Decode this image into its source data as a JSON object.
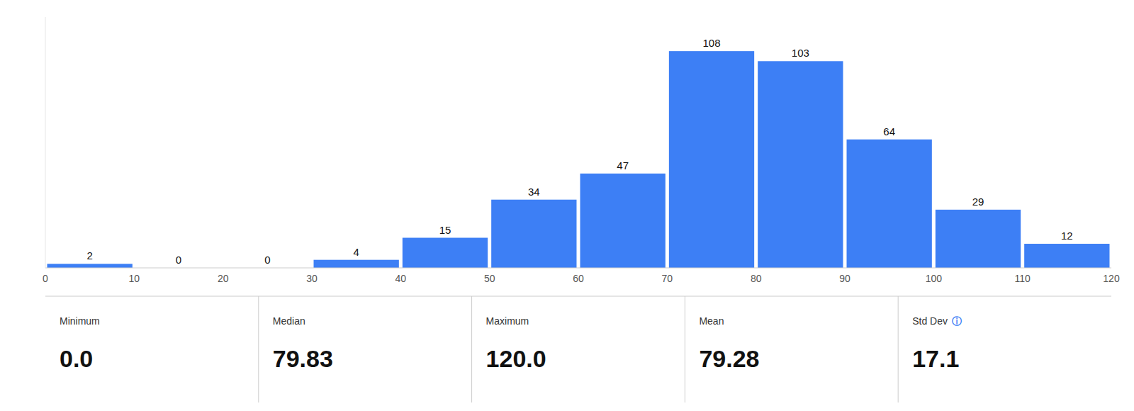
{
  "chart_data": {
    "type": "histogram",
    "bins": [
      0,
      10,
      20,
      30,
      40,
      50,
      60,
      70,
      80,
      90,
      100,
      110,
      120
    ],
    "values": [
      2,
      0,
      0,
      4,
      15,
      34,
      47,
      108,
      103,
      64,
      29,
      12
    ],
    "color": "#3d7ff5",
    "xlim": [
      0,
      120
    ],
    "ylim": [
      0,
      125
    ],
    "xticks": [
      0,
      10,
      20,
      30,
      40,
      50,
      60,
      70,
      80,
      90,
      100,
      110,
      120
    ],
    "tick_labels": "x",
    "data_labels": true,
    "grid": false,
    "stats": [
      {
        "name": "Minimum",
        "value": 0.0,
        "value_label": "0.0"
      },
      {
        "name": "Median",
        "value": 79.83,
        "value_label": "79.83"
      },
      {
        "name": "Maximum",
        "value": 120.0,
        "value_label": "120.0"
      },
      {
        "name": "Mean",
        "value": 79.28,
        "value_label": "79.28"
      },
      {
        "name": "Std Dev",
        "value": 17.1,
        "value_label": "17.1",
        "icon": "ⓘ"
      }
    ]
  }
}
